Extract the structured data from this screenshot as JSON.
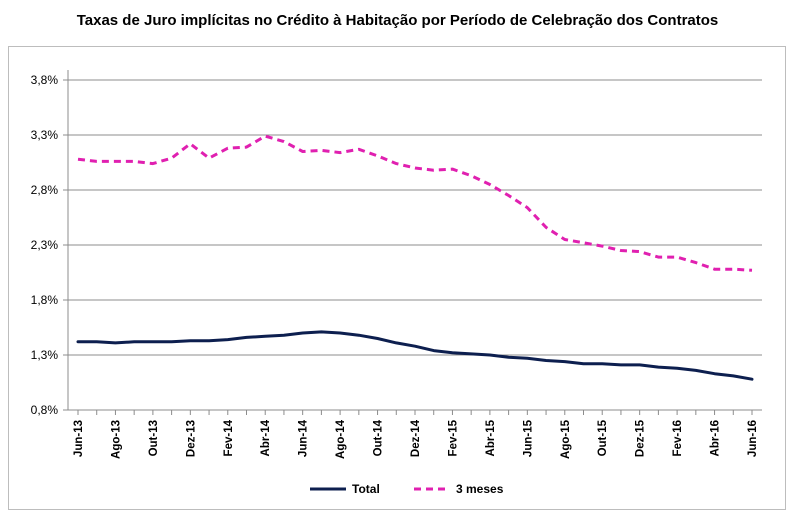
{
  "chart_data": {
    "type": "line",
    "title": "Taxas de Juro implícitas no Crédito à Habitação por Período de Celebração dos Contratos",
    "xlabel": "",
    "ylabel": "",
    "ylim": [
      0.8,
      3.8
    ],
    "y_ticks": [
      "0,8%",
      "1,3%",
      "1,8%",
      "2,3%",
      "2,8%",
      "3,3%",
      "3,8%"
    ],
    "y_tick_values": [
      0.8,
      1.3,
      1.8,
      2.3,
      2.8,
      3.3,
      3.8
    ],
    "categories": [
      "Jun-13",
      "Jul-13",
      "Ago-13",
      "Set-13",
      "Out-13",
      "Nov-13",
      "Dez-13",
      "Jan-14",
      "Fev-14",
      "Mar-14",
      "Abr-14",
      "Mai-14",
      "Jun-14",
      "Jul-14",
      "Ago-14",
      "Set-14",
      "Out-14",
      "Nov-14",
      "Dez-14",
      "Jan-15",
      "Fev-15",
      "Mar-15",
      "Abr-15",
      "Mai-15",
      "Jun-15",
      "Jul-15",
      "Ago-15",
      "Set-15",
      "Out-15",
      "Nov-15",
      "Dez-15",
      "Jan-16",
      "Fev-16",
      "Mar-16",
      "Abr-16",
      "Mai-16",
      "Jun-16"
    ],
    "x_tick_labels": [
      "Jun-13",
      "Ago-13",
      "Out-13",
      "Dez-13",
      "Fev-14",
      "Abr-14",
      "Jun-14",
      "Ago-14",
      "Out-14",
      "Dez-14",
      "Fev-15",
      "Abr-15",
      "Jun-15",
      "Ago-15",
      "Out-15",
      "Dez-15",
      "Fev-16",
      "Abr-16",
      "Jun-16"
    ],
    "grid": true,
    "legend_position": "bottom",
    "series": [
      {
        "name": "Total",
        "color": "#0d1f4f",
        "style": "solid",
        "values": [
          1.42,
          1.42,
          1.41,
          1.42,
          1.42,
          1.42,
          1.43,
          1.43,
          1.44,
          1.46,
          1.47,
          1.48,
          1.5,
          1.51,
          1.5,
          1.48,
          1.45,
          1.41,
          1.38,
          1.34,
          1.32,
          1.31,
          1.3,
          1.28,
          1.27,
          1.25,
          1.24,
          1.22,
          1.22,
          1.21,
          1.21,
          1.19,
          1.18,
          1.16,
          1.13,
          1.11,
          1.08
        ]
      },
      {
        "name": "3 meses",
        "color": "#e020b0",
        "style": "dashed",
        "values": [
          3.08,
          3.06,
          3.06,
          3.06,
          3.04,
          3.09,
          3.22,
          3.09,
          3.18,
          3.19,
          3.29,
          3.24,
          3.15,
          3.16,
          3.14,
          3.17,
          3.11,
          3.04,
          3.0,
          2.98,
          2.99,
          2.93,
          2.85,
          2.75,
          2.64,
          2.46,
          2.35,
          2.32,
          2.29,
          2.25,
          2.24,
          2.19,
          2.19,
          2.14,
          2.08,
          2.08,
          2.07
        ]
      }
    ]
  }
}
